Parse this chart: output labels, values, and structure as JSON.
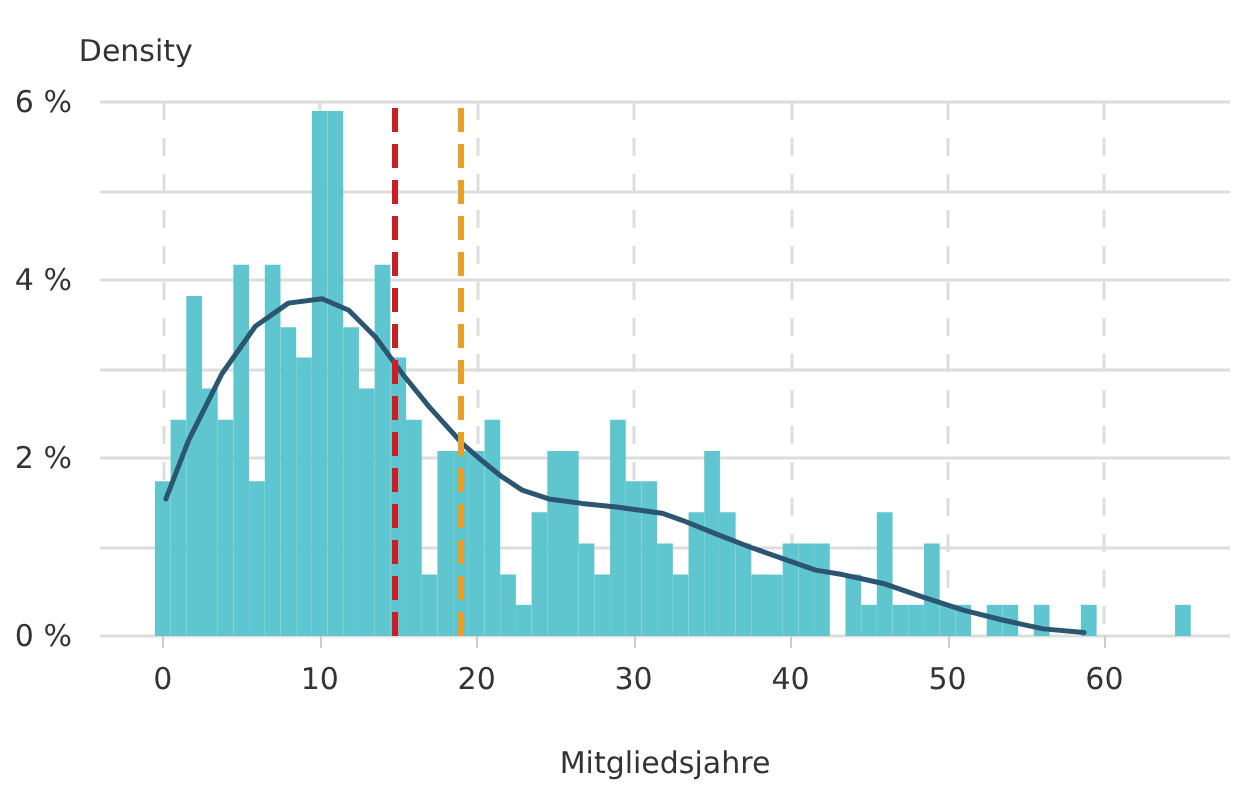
{
  "chart_data": {
    "type": "histogram",
    "xlabel": "Mitgliedsjahre",
    "ylabel": "Density",
    "xlim": [
      -4,
      68
    ],
    "xticks": [
      0,
      10,
      20,
      30,
      40,
      50,
      60
    ],
    "ylim": [
      0,
      6
    ],
    "yticks": [
      {
        "value": 0,
        "label": "0 %"
      },
      {
        "value": 1,
        "label": null
      },
      {
        "value": 2,
        "label": "2 %"
      },
      {
        "value": 3,
        "label": null
      },
      {
        "value": 4,
        "label": "4 %"
      },
      {
        "value": 5,
        "label": null
      },
      {
        "value": 6,
        "label": "6 %"
      }
    ],
    "grid": true,
    "series": [
      {
        "color": "#5fc6d0",
        "bins": [
          -0.5,
          0.5,
          1.5,
          2.5,
          3.5,
          4.5,
          5.5,
          6.5,
          7.5,
          8.5,
          9.5,
          10.5,
          11.5,
          12.5,
          13.5,
          14.5,
          15.5,
          16.5,
          17.5,
          18.5,
          19.5,
          20.5,
          21.5,
          22.5,
          23.5,
          24.5,
          25.5,
          26.5,
          27.5,
          28.5,
          29.5,
          30.5,
          31.5,
          32.5,
          33.5,
          34.5,
          35.5,
          36.5,
          37.5,
          38.5,
          39.5,
          40.5,
          41.5,
          42.5,
          43.5,
          44.5,
          45.5,
          46.5,
          47.5,
          48.5,
          49.5,
          50.5,
          51.5,
          52.5,
          53.5,
          54.5,
          55.5,
          56.5,
          57.5,
          58.5,
          59.5,
          60.5,
          61.5,
          62.5,
          63.5,
          64.5,
          65.5
        ],
        "values": [
          1.74,
          2.43,
          3.82,
          2.78,
          2.43,
          4.17,
          1.74,
          4.17,
          3.47,
          3.13,
          5.9,
          5.9,
          3.47,
          2.78,
          4.17,
          3.13,
          2.43,
          0.69,
          2.08,
          2.08,
          2.08,
          2.43,
          0.69,
          0.35,
          1.39,
          2.08,
          2.08,
          1.04,
          0.69,
          2.43,
          1.74,
          1.74,
          1.04,
          0.69,
          1.39,
          2.08,
          1.39,
          1.04,
          0.69,
          0.69,
          1.04,
          1.04,
          1.04,
          0,
          0.69,
          0.35,
          1.39,
          0.35,
          0.35,
          1.04,
          0.35,
          0.35,
          0,
          0.35,
          0.35,
          0,
          0.35,
          0,
          0,
          0.35,
          0,
          0,
          0,
          0,
          0,
          0.35
        ]
      },
      {
        "type": "line",
        "color": "#2b5570",
        "marker": "none",
        "line_style": "solid",
        "x": [
          0.2,
          1.65,
          3.78,
          5.9,
          8.0,
          10.15,
          11.85,
          13.55,
          15.25,
          16.95,
          19.1,
          20.4,
          21.6,
          22.9,
          24.6,
          26.7,
          28.9,
          31.8,
          33.1,
          35.2,
          37.4,
          39.5,
          41.6,
          43.3,
          44.6,
          45.9,
          48.4,
          51.0,
          53.5,
          56.1,
          58.7
        ],
        "values": [
          1.54,
          2.2,
          2.95,
          3.48,
          3.74,
          3.79,
          3.66,
          3.36,
          2.95,
          2.58,
          2.16,
          1.96,
          1.79,
          1.64,
          1.54,
          1.49,
          1.45,
          1.38,
          1.3,
          1.15,
          1.0,
          0.87,
          0.74,
          0.69,
          0.64,
          0.59,
          0.44,
          0.29,
          0.18,
          0.08,
          0.04
        ]
      }
    ],
    "ref_lines": [
      {
        "axis": "x",
        "value": 14.8,
        "color": "#cc1f24",
        "line_style": "dashed"
      },
      {
        "axis": "x",
        "value": 19.0,
        "color": "#e8a02a",
        "line_style": "dashed"
      }
    ]
  }
}
